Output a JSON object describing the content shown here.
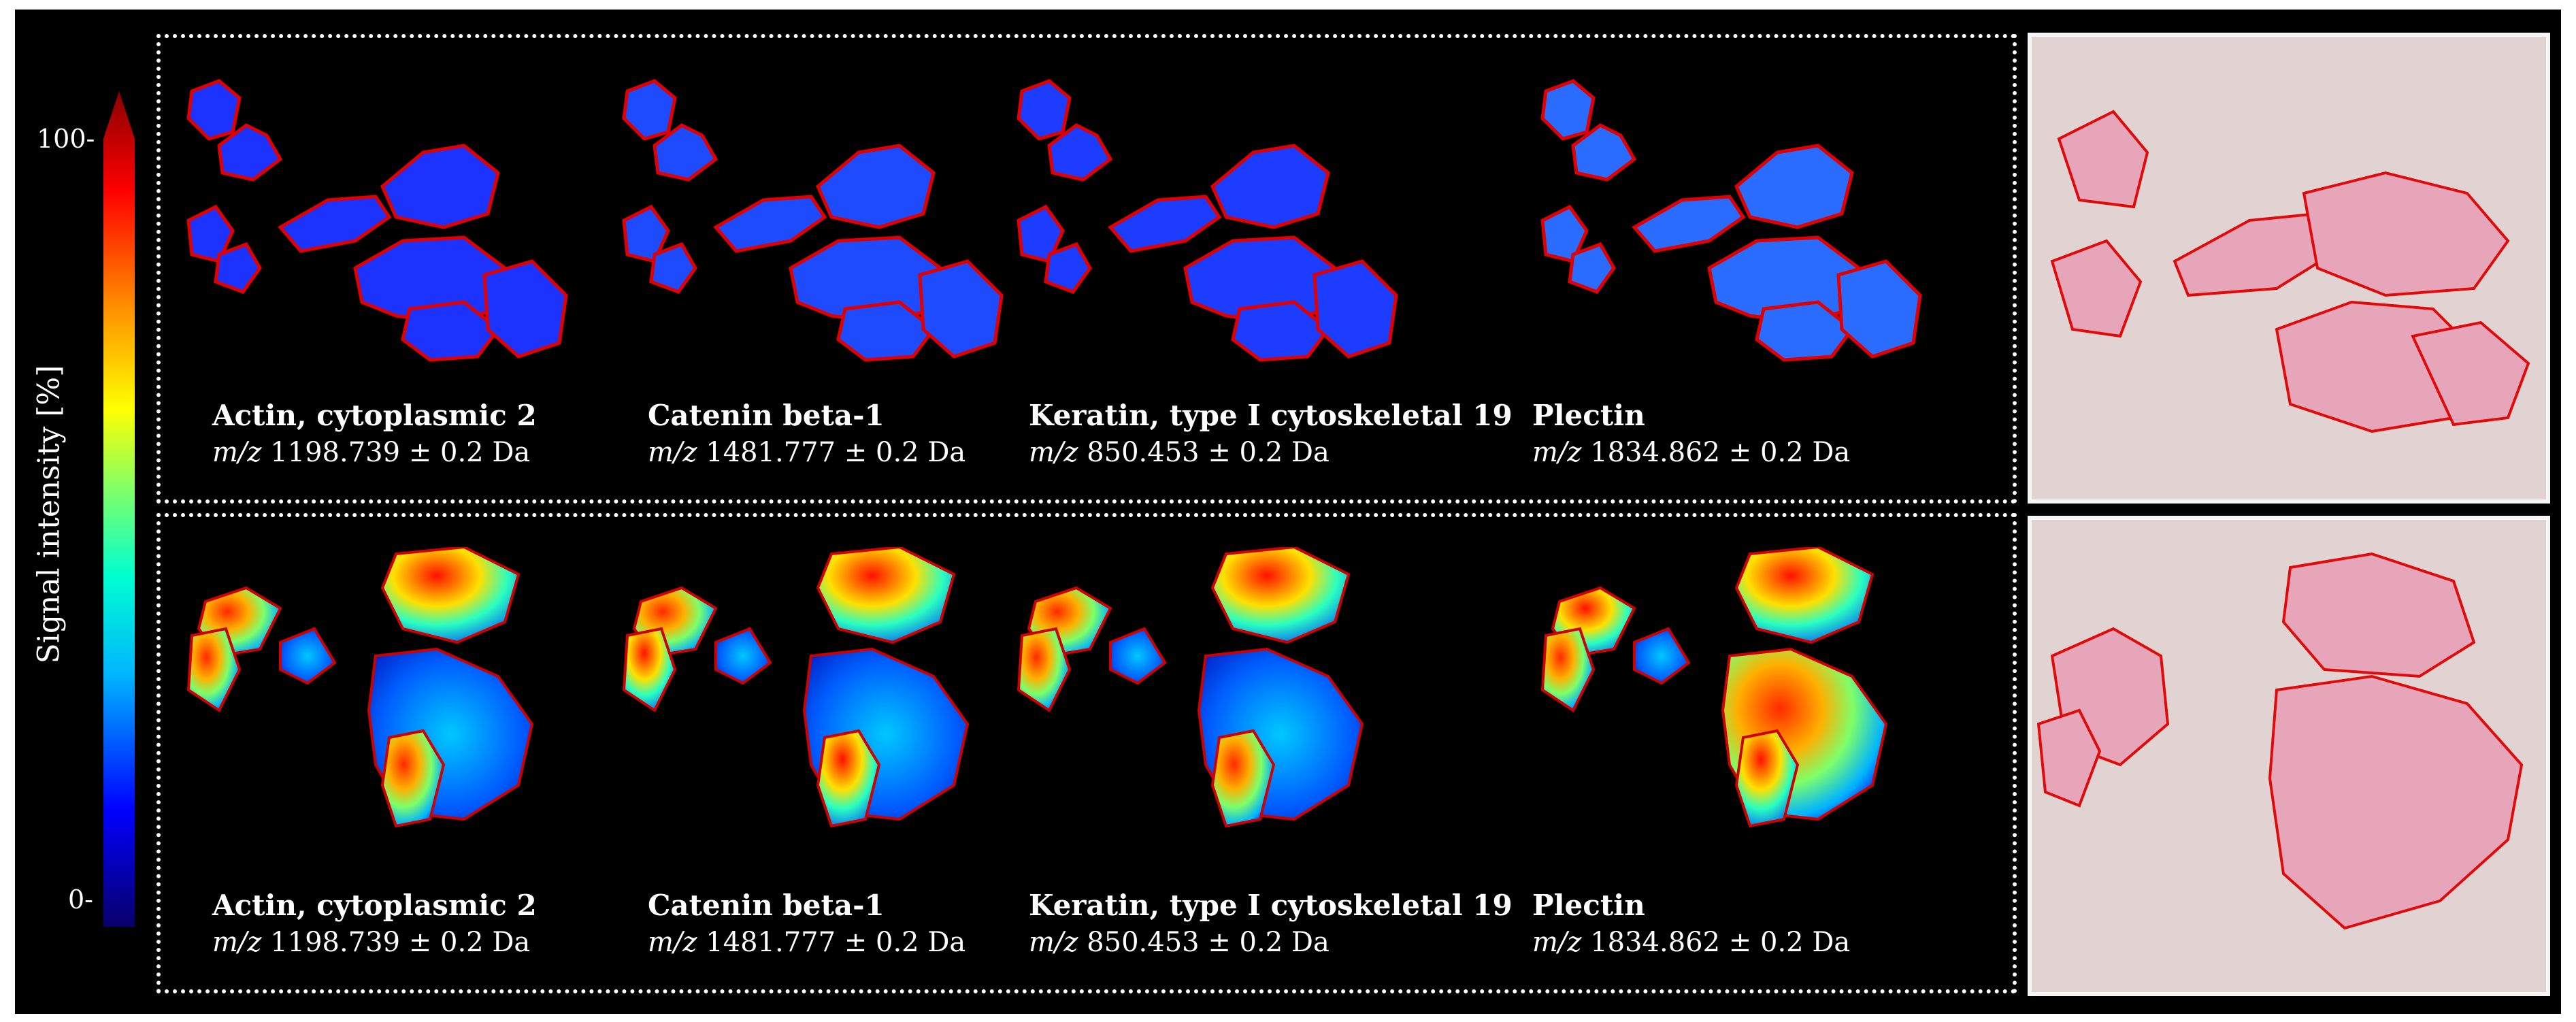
{
  "colorbar": {
    "label": "Signal intensity [%]",
    "tick_max": "100-",
    "tick_min": "0-",
    "colormap": "jet",
    "colors": [
      "#08006a",
      "#0000ff",
      "#00b4ff",
      "#00ffd0",
      "#7dff6a",
      "#ffff00",
      "#ff9000",
      "#ff0000",
      "#8a0000"
    ]
  },
  "rows": [
    {
      "name": "top",
      "outline_color": "#e00000",
      "tiles": [
        {
          "protein": "Actin, cytoplasmic 2",
          "mz_label": "m/z",
          "mz_value": "1198.739 ± 0.2 Da"
        },
        {
          "protein": "Catenin beta-1",
          "mz_label": "m/z",
          "mz_value": "1481.777 ± 0.2 Da"
        },
        {
          "protein": "Keratin, type I cytoskeletal 19",
          "mz_label": "m/z",
          "mz_value": "850.453 ± 0.2 Da"
        },
        {
          "protein": "Plectin",
          "mz_label": "m/z",
          "mz_value": "1834.862 ± 0.2 Da"
        }
      ]
    },
    {
      "name": "bottom",
      "outline_color": "#e00000",
      "tiles": [
        {
          "protein": "Actin, cytoplasmic 2",
          "mz_label": "m/z",
          "mz_value": "1198.739 ± 0.2 Da"
        },
        {
          "protein": "Catenin beta-1",
          "mz_label": "m/z",
          "mz_value": "1481.777 ± 0.2 Da"
        },
        {
          "protein": "Keratin, type I cytoskeletal 19",
          "mz_label": "m/z",
          "mz_value": "850.453 ± 0.2 Da"
        },
        {
          "protein": "Plectin",
          "mz_label": "m/z",
          "mz_value": "1834.862 ± 0.2 Da"
        }
      ]
    }
  ],
  "histology": {
    "stain": "H&E",
    "background": "#e2d3d3",
    "tissue_color": "#e8a3b8",
    "annotation_color": "#e00000"
  }
}
